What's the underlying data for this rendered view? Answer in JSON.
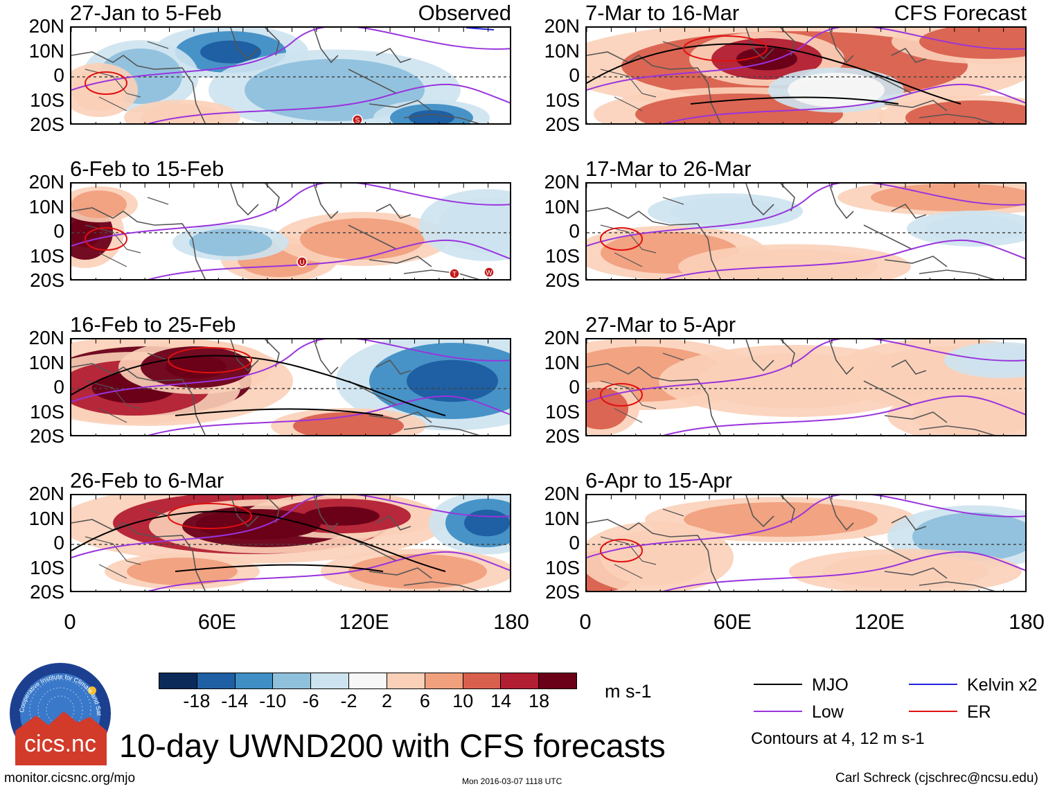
{
  "panels": [
    {
      "title": "27-Jan to 5-Feb",
      "source": "Observed",
      "intensity": 0.0
    },
    {
      "title": "6-Feb to 15-Feb",
      "source": "",
      "intensity": 0.2
    },
    {
      "title": "16-Feb to 25-Feb",
      "source": "",
      "intensity": 0.6
    },
    {
      "title": "26-Feb to 6-Mar",
      "source": "",
      "intensity": 1.0
    },
    {
      "title": "7-Mar to 16-Mar",
      "source": "CFS Forecast",
      "intensity": 0.7
    },
    {
      "title": "17-Mar to 26-Mar",
      "source": "",
      "intensity": 0.15
    },
    {
      "title": "27-Mar to 5-Apr",
      "source": "",
      "intensity": 0.25
    },
    {
      "title": "6-Apr to 15-Apr",
      "source": "",
      "intensity": 0.3
    }
  ],
  "lat_labels": [
    "20N",
    "10N",
    "0",
    "10S",
    "20S"
  ],
  "lon_labels": [
    "0",
    "60E",
    "120E",
    "180"
  ],
  "colorbar": {
    "colors": [
      "#0b2a5a",
      "#1f5fa3",
      "#3f8ec4",
      "#8fc0dc",
      "#cde3ef",
      "#f7f7f7",
      "#fbd0b8",
      "#f1a07e",
      "#d9604d",
      "#b21f33",
      "#6b0019"
    ],
    "ticks": [
      "-18",
      "-14",
      "-10",
      "-6",
      "-2",
      "2",
      "6",
      "10",
      "14",
      "18"
    ],
    "units": "m s-1"
  },
  "legend": {
    "items": [
      {
        "label": "MJO",
        "color": "#000000"
      },
      {
        "label": "Kelvin x2",
        "color": "#2222dd"
      },
      {
        "label": "Low",
        "color": "#9933dd"
      },
      {
        "label": "ER",
        "color": "#e01010"
      }
    ],
    "contour_note": "Contours at 4, 12 m s-1"
  },
  "main_title": "10-day UWND200 with CFS forecasts",
  "logo": {
    "text": "cics.nc",
    "ring_text": "Cooperative Institute for Climate and Satellites"
  },
  "footer": {
    "url": "monitor.cicsnc.org/mjo",
    "timestamp": "Mon 2016-03-07 1118 UTC",
    "author": "Carl Schreck (cjschrec@ncsu.edu)"
  },
  "storm_labels": [
    {
      "panel": 0,
      "letter": "S"
    },
    {
      "panel": 1,
      "letter": "U"
    },
    {
      "panel": 1,
      "letter": "T"
    },
    {
      "panel": 1,
      "letter": "W"
    }
  ]
}
